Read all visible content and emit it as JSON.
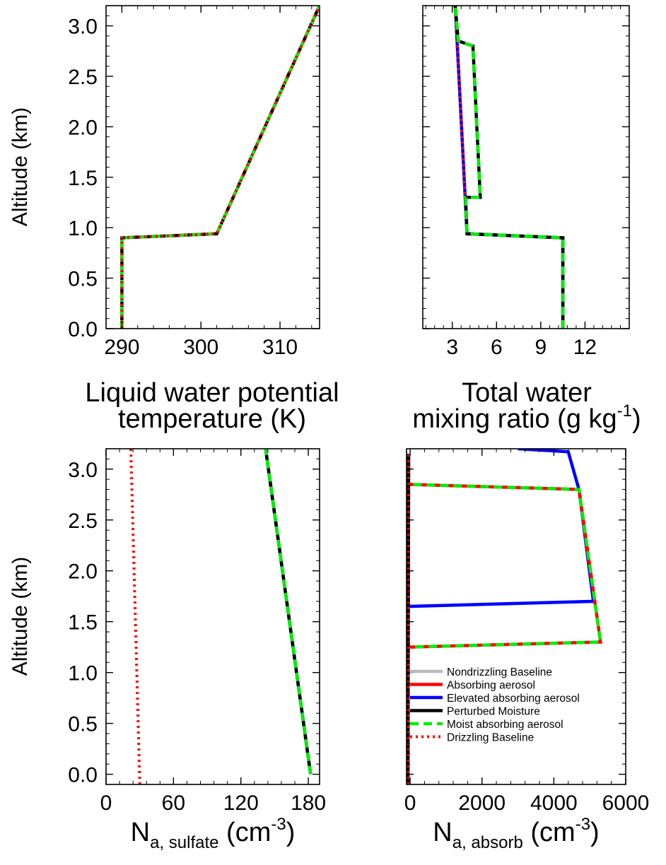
{
  "chart_data": [
    {
      "id": "p1",
      "type": "line",
      "xlabel": [
        "Liquid water potential",
        "temperature (K)"
      ],
      "ylabel": "Altitude (km)",
      "xlim": [
        288,
        315
      ],
      "ylim": [
        0,
        3.2
      ],
      "xticks": [
        290,
        300,
        310
      ],
      "xtick_labels": [
        "290",
        "300",
        "310"
      ],
      "yticks": [
        0,
        0.5,
        1,
        1.5,
        2,
        2.5,
        3
      ],
      "ytick_labels": [
        "0.0",
        "0.5",
        "1.0",
        "1.5",
        "2.0",
        "2.5",
        "3.0"
      ],
      "series": [
        {
          "name": "Perturbed Moisture",
          "x": [
            290,
            290,
            302,
            315
          ],
          "y": [
            0,
            0.9,
            0.94,
            3.2
          ]
        },
        {
          "name": "Moist absorbing aerosol",
          "x": [
            290,
            290,
            302,
            315
          ],
          "y": [
            0,
            0.9,
            0.94,
            3.2
          ]
        },
        {
          "name": "Drizzling Baseline",
          "x": [
            290,
            290,
            302,
            315
          ],
          "y": [
            0,
            0.9,
            0.94,
            3.2
          ]
        }
      ]
    },
    {
      "id": "p2",
      "type": "line",
      "xlabel": [
        "Total water",
        "mixing ratio (g kg",
        "-1",
        ")"
      ],
      "ylabel": "",
      "xlim": [
        1,
        15
      ],
      "ylim": [
        0,
        3.2
      ],
      "xticks": [
        3,
        6,
        9,
        12
      ],
      "xtick_labels": [
        "3",
        "6",
        "9",
        "12"
      ],
      "series": [
        {
          "name": "Elevated absorbing aerosol",
          "x": [
            10.5,
            10.5,
            4.0,
            3.2
          ],
          "y": [
            0,
            0.9,
            0.94,
            3.2
          ]
        },
        {
          "name": "Drizzling Baseline",
          "x": [
            10.5,
            10.5,
            4.0,
            3.2
          ],
          "y": [
            0,
            0.9,
            0.94,
            3.2
          ]
        },
        {
          "name": "Perturbed Moisture",
          "x": [
            10.5,
            10.5,
            4.0,
            3.9,
            4.9,
            4.4,
            3.4,
            3.2
          ],
          "y": [
            0,
            0.9,
            0.94,
            1.3,
            1.3,
            2.8,
            2.85,
            3.2
          ]
        },
        {
          "name": "Moist absorbing aerosol",
          "x": [
            10.5,
            10.5,
            4.0,
            3.9,
            4.9,
            4.4,
            3.4,
            3.2
          ],
          "y": [
            0,
            0.9,
            0.94,
            1.3,
            1.3,
            2.8,
            2.85,
            3.2
          ]
        }
      ]
    },
    {
      "id": "p3",
      "type": "line",
      "xlabel": [
        "N",
        "a, sulfate",
        " (cm",
        "-3",
        ")"
      ],
      "ylabel": "Altitude (km)",
      "xlim": [
        0,
        190
      ],
      "ylim": [
        -0.1,
        3.2
      ],
      "xticks": [
        0,
        60,
        120,
        180
      ],
      "xtick_labels": [
        "0",
        "60",
        "120",
        "180"
      ],
      "yticks": [
        0,
        0.5,
        1,
        1.5,
        2,
        2.5,
        3
      ],
      "ytick_labels": [
        "0.0",
        "0.5",
        "1.0",
        "1.5",
        "2.0",
        "2.5",
        "3.0"
      ],
      "series": [
        {
          "name": "Elevated absorbing aerosol",
          "x": [
            182,
            142
          ],
          "y": [
            0,
            3.2
          ]
        },
        {
          "name": "Perturbed Moisture",
          "x": [
            182,
            142
          ],
          "y": [
            0,
            3.2
          ]
        },
        {
          "name": "Moist absorbing aerosol",
          "x": [
            182,
            142
          ],
          "y": [
            0,
            3.2
          ]
        },
        {
          "name": "Drizzling Baseline",
          "x": [
            30,
            22
          ],
          "y": [
            -0.1,
            3.2
          ]
        }
      ]
    },
    {
      "id": "p4",
      "type": "line",
      "xlabel": [
        "N",
        "a, absorb",
        " (cm",
        "-3",
        ")"
      ],
      "ylabel": "",
      "xlim": [
        -100,
        6000
      ],
      "ylim": [
        -0.1,
        3.2
      ],
      "xticks": [
        0,
        2000,
        4000,
        6000
      ],
      "xtick_labels": [
        "0",
        "2000",
        "4000",
        "6000"
      ],
      "series": [
        {
          "name": "Nondrizzling Baseline",
          "x": [
            -60,
            -40
          ],
          "y": [
            -0.1,
            3.15
          ]
        },
        {
          "name": "Elevated absorbing aerosol",
          "x": [
            -60,
            -60,
            5100,
            4700,
            4400,
            3000
          ],
          "y": [
            0,
            1.65,
            1.7,
            2.8,
            3.17,
            3.2
          ]
        },
        {
          "name": "Absorbing aerosol",
          "x": [
            -60,
            -60,
            5300,
            4700,
            -60,
            -60
          ],
          "y": [
            0,
            1.25,
            1.3,
            2.8,
            2.85,
            3.15
          ]
        },
        {
          "name": "Moist absorbing aerosol",
          "x": [
            -60,
            -60,
            5300,
            4700,
            -60,
            -60
          ],
          "y": [
            0,
            1.25,
            1.3,
            2.8,
            2.85,
            3.15
          ]
        },
        {
          "name": "Perturbed Moisture",
          "x": [
            -60,
            -40
          ],
          "y": [
            -0.1,
            3.15
          ]
        },
        {
          "name": "Drizzling Baseline",
          "x": [
            -60,
            -40
          ],
          "y": [
            -0.1,
            3.15
          ]
        }
      ]
    }
  ],
  "legend": {
    "placement": "lower-left of bottom-right panel",
    "entries": [
      {
        "label": "Nondrizzling Baseline",
        "color": "#bbbbbb",
        "dash": "solid"
      },
      {
        "label": "Absorbing aerosol",
        "color": "#ff0000",
        "dash": "solid"
      },
      {
        "label": "Elevated absorbing aerosol",
        "color": "#0000ff",
        "dash": "solid"
      },
      {
        "label": "Perturbed Moisture",
        "color": "#000000",
        "dash": "solid"
      },
      {
        "label": "Moist absorbing aerosol",
        "color": "#00ee00",
        "dash": "dashed"
      },
      {
        "label": "Drizzling Baseline",
        "color": "#ff0000",
        "dash": "dotted"
      }
    ]
  },
  "series_styles": {
    "Nondrizzling Baseline": {
      "color": "#bbbbbb",
      "dash": "solid"
    },
    "Absorbing aerosol": {
      "color": "#ff0000",
      "dash": "solid"
    },
    "Elevated absorbing aerosol": {
      "color": "#0000ff",
      "dash": "solid"
    },
    "Perturbed Moisture": {
      "color": "#000000",
      "dash": "solid"
    },
    "Moist absorbing aerosol": {
      "color": "#00ee00",
      "dash": "dashed"
    },
    "Drizzling Baseline": {
      "color": "#ff0000",
      "dash": "dotted"
    }
  }
}
